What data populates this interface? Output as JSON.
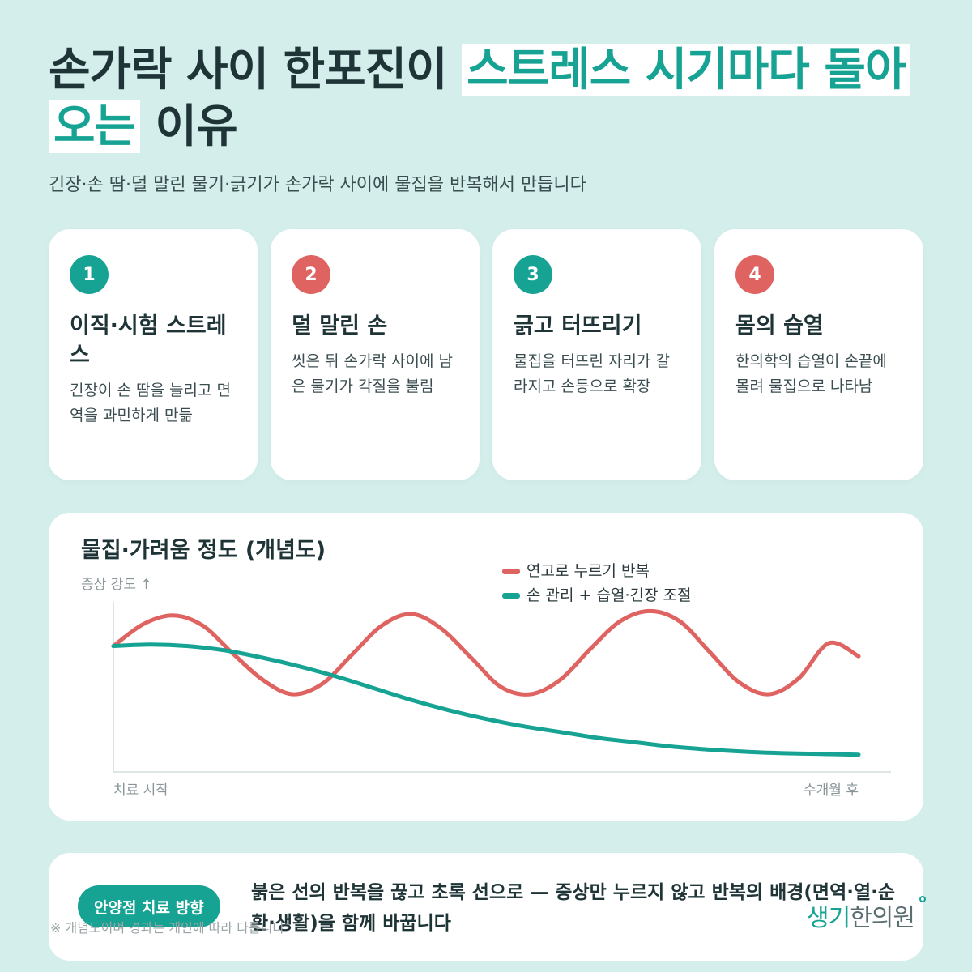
{
  "title": {
    "part1": "손가락 사이 한포진이 ",
    "highlight": "스트레스 시기마다 돌아오는",
    "part2": " 이유"
  },
  "subtitle": "긴장·손 땀·덜 말린 물기·긁기가 손가락 사이에 물집을 반복해서 만듭니다",
  "cards": [
    {
      "num": "1",
      "title": "이직·시험 스트레스",
      "desc": "긴장이 손 땀을 늘리고 면역을 과민하게 만듦",
      "color": "teal"
    },
    {
      "num": "2",
      "title": "덜 말린 손",
      "desc": "씻은 뒤 손가락 사이에 남은 물기가 각질을 불림",
      "color": "red"
    },
    {
      "num": "3",
      "title": "긁고 터뜨리기",
      "desc": "물집을 터뜨린 자리가 갈라지고 손등으로 확장",
      "color": "teal"
    },
    {
      "num": "4",
      "title": "몸의 습열",
      "desc": "한의학의 습열이 손끝에 몰려 물집으로 나타남",
      "color": "red"
    }
  ],
  "chart_data": {
    "type": "line",
    "title": "물집·가려움 정도 (개념도)",
    "ylabel": "증상 강도 ↑",
    "xlabel_start": "치료 시작",
    "xlabel_end": "수개월 후",
    "xlim": [
      0,
      1
    ],
    "ylim": [
      0,
      1
    ],
    "legend_position": "top-right",
    "grid": false,
    "series": [
      {
        "name": "연고로 누르기 반복",
        "color": "#df6360",
        "x": [
          0,
          0.04,
          0.08,
          0.12,
          0.16,
          0.2,
          0.24,
          0.28,
          0.32,
          0.36,
          0.4,
          0.44,
          0.48,
          0.52,
          0.56,
          0.6,
          0.64,
          0.68,
          0.72,
          0.76,
          0.8,
          0.84,
          0.88,
          0.92,
          0.96,
          1.0
        ],
        "values": [
          0.78,
          0.93,
          0.99,
          0.92,
          0.73,
          0.55,
          0.45,
          0.52,
          0.72,
          0.92,
          1.0,
          0.9,
          0.7,
          0.5,
          0.45,
          0.55,
          0.76,
          0.95,
          1.02,
          0.95,
          0.74,
          0.53,
          0.45,
          0.56,
          0.8,
          0.71
        ]
      },
      {
        "name": "손 관리 + 습열·긴장 조절",
        "color": "#17a394",
        "x": [
          0,
          0.05,
          0.1,
          0.15,
          0.2,
          0.25,
          0.3,
          0.35,
          0.4,
          0.45,
          0.5,
          0.55,
          0.6,
          0.65,
          0.7,
          0.75,
          0.8,
          0.85,
          0.9,
          0.95,
          1.0
        ],
        "values": [
          0.78,
          0.79,
          0.78,
          0.75,
          0.7,
          0.64,
          0.57,
          0.49,
          0.41,
          0.34,
          0.28,
          0.23,
          0.19,
          0.15,
          0.12,
          0.09,
          0.07,
          0.055,
          0.045,
          0.04,
          0.035
        ]
      }
    ]
  },
  "bottom": {
    "badge": "안양점 치료 방향",
    "text": "붉은 선의 반복을 끊고 초록 선으로 — 증상만 누르지 않고 반복의 배경(면역·열·순환·생활)을 함께 바꿉니다"
  },
  "footnote": "※ 개념도이며 경과는 개인에 따라 다릅니다",
  "brand": {
    "part1": "생기",
    "part2": "한의원"
  }
}
